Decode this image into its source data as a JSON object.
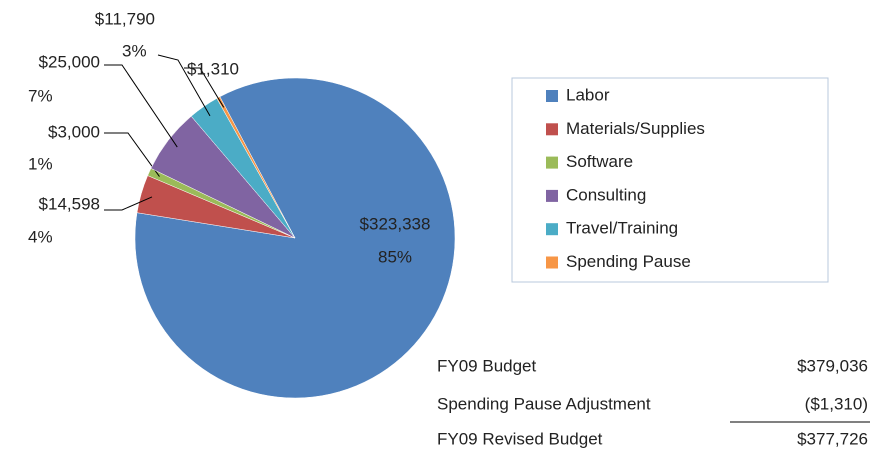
{
  "chart_data": {
    "type": "pie",
    "categories": [
      "Labor",
      "Materials/Supplies",
      "Software",
      "Consulting",
      "Travel/Training",
      "Spending Pause"
    ],
    "values": [
      323338,
      14598,
      3000,
      25000,
      11790,
      1310
    ],
    "value_labels": [
      "$323,338",
      "$14,598",
      "$3,000",
      "$25,000",
      "$11,790",
      "$1,310"
    ],
    "percent_labels": [
      "85%",
      "4%",
      "1%",
      "7%",
      "3%",
      null
    ],
    "colors": [
      "#4f81bd",
      "#c0504d",
      "#9bbb59",
      "#8064a2",
      "#4bacc6",
      "#f79646"
    ],
    "legend": "right"
  },
  "summary": {
    "rows": [
      [
        "FY09 Budget",
        "$379,036"
      ],
      [
        "Spending Pause Adjustment",
        "($1,310)"
      ],
      [
        "FY09 Revised Budget",
        "$377,726"
      ]
    ]
  }
}
